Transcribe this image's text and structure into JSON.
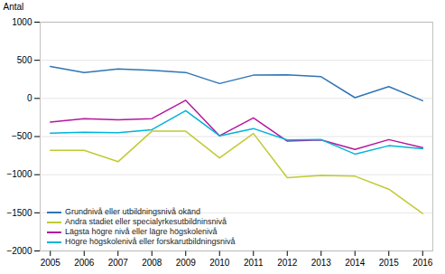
{
  "chart_data": {
    "type": "line",
    "ylabel": "Antal",
    "x": [
      2005,
      2006,
      2007,
      2008,
      2009,
      2010,
      2011,
      2012,
      2013,
      2014,
      2015,
      2016
    ],
    "series": [
      {
        "name": "Grundnivå eller utbildningsnivå okänd",
        "color": "#2e75b6",
        "values": [
          420,
          340,
          385,
          370,
          340,
          195,
          305,
          310,
          285,
          10,
          155,
          -30
        ]
      },
      {
        "name": "Andra stadiet eller specialyrkesutbildninsnivå",
        "color": "#c0ca33",
        "values": [
          -680,
          -680,
          -830,
          -430,
          -430,
          -780,
          -460,
          -1040,
          -1010,
          -1020,
          -1190,
          -1510
        ]
      },
      {
        "name": "Lägsta högre nivå eller lägre högskolenivå",
        "color": "#b5179e",
        "values": [
          -310,
          -265,
          -280,
          -265,
          -25,
          -490,
          -255,
          -560,
          -545,
          -670,
          -540,
          -645
        ]
      },
      {
        "name": "Högre högskolenivå eller forskarutbildningsnivå",
        "color": "#00b4d8",
        "values": [
          -455,
          -445,
          -450,
          -410,
          -160,
          -490,
          -395,
          -545,
          -540,
          -730,
          -620,
          -660
        ]
      }
    ],
    "xlim": [
      2004.7,
      2016.3
    ],
    "xticks": [
      2005,
      2006,
      2007,
      2008,
      2009,
      2010,
      2011,
      2012,
      2013,
      2014,
      2015,
      2016
    ],
    "ylim": [
      -2000,
      1000
    ],
    "yticks": [
      -2000,
      -1500,
      -1000,
      -500,
      0,
      500,
      1000
    ],
    "grid": true,
    "legend": "lower left"
  }
}
